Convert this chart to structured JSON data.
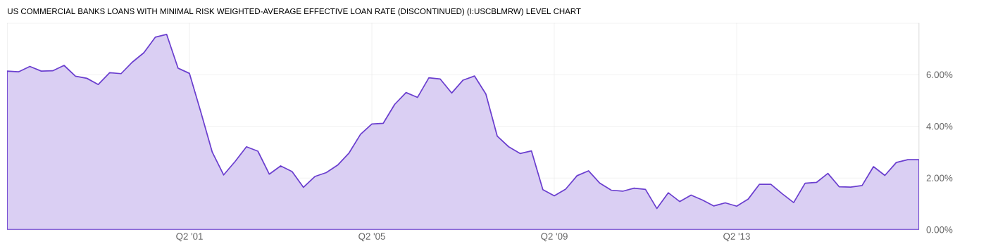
{
  "chart_data": {
    "type": "area",
    "title": "US COMMERCIAL BANKS LOANS WITH MINIMAL RISK WEIGHTED-AVERAGE EFFECTIVE LOAN RATE (DISCONTINUED) (I:USCBLMRW) LEVEL CHART",
    "categories": [
      null,
      null,
      null,
      null,
      null,
      null,
      null,
      null,
      null,
      null,
      null,
      null,
      null,
      null,
      null,
      null,
      "Q2 '01",
      null,
      null,
      null,
      null,
      null,
      null,
      null,
      null,
      null,
      null,
      null,
      null,
      null,
      null,
      null,
      "Q2 '05",
      null,
      null,
      null,
      null,
      null,
      null,
      null,
      null,
      null,
      null,
      null,
      null,
      null,
      null,
      null,
      "Q2 '09",
      null,
      null,
      null,
      null,
      null,
      null,
      null,
      null,
      null,
      null,
      null,
      null,
      null,
      null,
      null,
      "Q2 '13",
      null,
      null,
      null,
      null,
      null,
      null,
      null,
      null,
      null,
      null,
      null,
      null,
      null,
      null,
      null,
      null
    ],
    "series": [
      {
        "color": "#dacff3",
        "values": [
          6.14,
          6.11,
          6.32,
          6.14,
          6.15,
          6.36,
          5.94,
          5.86,
          5.62,
          6.08,
          6.04,
          6.49,
          6.85,
          7.45,
          7.56,
          6.25,
          6.05,
          4.55,
          3.0,
          2.12,
          2.64,
          3.21,
          3.04,
          2.15,
          2.47,
          2.25,
          1.64,
          2.06,
          2.21,
          2.5,
          2.97,
          3.69,
          4.09,
          4.12,
          4.85,
          5.31,
          5.12,
          5.88,
          5.83,
          5.29,
          5.79,
          5.95,
          5.25,
          3.62,
          3.21,
          2.95,
          3.05,
          1.55,
          1.31,
          1.57,
          2.09,
          2.28,
          1.8,
          1.53,
          1.49,
          1.61,
          1.56,
          0.82,
          1.43,
          1.09,
          1.34,
          1.15,
          0.92,
          1.04,
          0.91,
          1.18,
          1.76,
          1.76,
          1.39,
          1.05,
          1.8,
          1.83,
          2.18,
          1.66,
          1.65,
          1.71,
          2.44,
          2.1,
          2.6,
          2.71,
          2.71
        ]
      }
    ],
    "ylim": [
      0,
      8
    ],
    "yticks": [
      {
        "value": 0,
        "label": "0.00%"
      },
      {
        "value": 2,
        "label": "2.00%"
      },
      {
        "value": 4,
        "label": "4.00%"
      },
      {
        "value": 6,
        "label": "6.00%"
      }
    ],
    "grid": true
  }
}
